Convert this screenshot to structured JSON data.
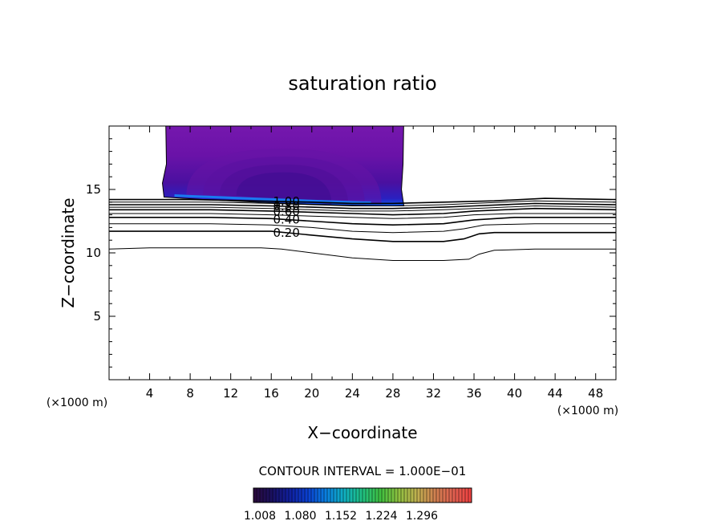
{
  "chart_data": {
    "type": "contour",
    "title": "saturation ratio",
    "xlabel": "X−coordinate",
    "ylabel": "Z−coordinate",
    "x_unit": "(×1000 m)",
    "z_unit": "(×1000 m)",
    "xlim": [
      0,
      50
    ],
    "ylim": [
      0,
      20
    ],
    "x_ticks": [
      4,
      8,
      12,
      16,
      20,
      24,
      28,
      32,
      36,
      40,
      44,
      48
    ],
    "y_ticks": [
      5,
      10,
      15
    ],
    "contour_interval_text": "CONTOUR INTERVAL = 1.000E−01",
    "contours": [
      {
        "level": 0.1,
        "label": "",
        "points": [
          [
            0,
            10.3
          ],
          [
            4,
            10.4
          ],
          [
            10,
            10.4
          ],
          [
            15,
            10.4
          ],
          [
            17,
            10.3
          ],
          [
            20,
            10
          ],
          [
            24,
            9.6
          ],
          [
            28,
            9.4
          ],
          [
            33,
            9.4
          ],
          [
            35.5,
            9.5
          ],
          [
            36.5,
            9.9
          ],
          [
            38,
            10.2
          ],
          [
            42,
            10.3
          ],
          [
            46,
            10.3
          ],
          [
            50,
            10.3
          ]
        ]
      },
      {
        "level": 0.2,
        "label": "0.20",
        "points": [
          [
            0,
            11.7
          ],
          [
            10,
            11.7
          ],
          [
            16,
            11.7
          ],
          [
            20,
            11.4
          ],
          [
            24,
            11.1
          ],
          [
            28,
            10.9
          ],
          [
            33,
            10.9
          ],
          [
            35,
            11.1
          ],
          [
            36.5,
            11.5
          ],
          [
            38,
            11.6
          ],
          [
            44,
            11.6
          ],
          [
            50,
            11.6
          ]
        ]
      },
      {
        "level": 0.3,
        "label": "",
        "points": [
          [
            0,
            12.3
          ],
          [
            10,
            12.3
          ],
          [
            16,
            12.2
          ],
          [
            20,
            12.0
          ],
          [
            24,
            11.7
          ],
          [
            28,
            11.6
          ],
          [
            33,
            11.7
          ],
          [
            35,
            11.9
          ],
          [
            37,
            12.2
          ],
          [
            42,
            12.3
          ],
          [
            50,
            12.3
          ]
        ]
      },
      {
        "level": 0.4,
        "label": "0.40",
        "points": [
          [
            0,
            12.8
          ],
          [
            10,
            12.8
          ],
          [
            16,
            12.7
          ],
          [
            20,
            12.5
          ],
          [
            24,
            12.3
          ],
          [
            28,
            12.2
          ],
          [
            33,
            12.3
          ],
          [
            36,
            12.6
          ],
          [
            40,
            12.8
          ],
          [
            50,
            12.8
          ]
        ]
      },
      {
        "level": 0.5,
        "label": "",
        "points": [
          [
            0,
            13.1
          ],
          [
            10,
            13.1
          ],
          [
            16,
            13.0
          ],
          [
            20,
            12.9
          ],
          [
            24,
            12.8
          ],
          [
            28,
            12.7
          ],
          [
            33,
            12.8
          ],
          [
            36,
            13.0
          ],
          [
            40,
            13.1
          ],
          [
            50,
            13.1
          ]
        ]
      },
      {
        "level": 0.6,
        "label": "0.60",
        "points": [
          [
            0,
            13.4
          ],
          [
            10,
            13.4
          ],
          [
            16,
            13.3
          ],
          [
            20,
            13.2
          ],
          [
            24,
            13.1
          ],
          [
            28,
            13.0
          ],
          [
            33,
            13.1
          ],
          [
            36,
            13.3
          ],
          [
            42,
            13.5
          ],
          [
            50,
            13.4
          ]
        ]
      },
      {
        "level": 0.7,
        "label": "",
        "points": [
          [
            0,
            13.6
          ],
          [
            10,
            13.6
          ],
          [
            16,
            13.5
          ],
          [
            20,
            13.4
          ],
          [
            24,
            13.3
          ],
          [
            28,
            13.3
          ],
          [
            33,
            13.4
          ],
          [
            36,
            13.5
          ],
          [
            42,
            13.7
          ],
          [
            50,
            13.6
          ]
        ]
      },
      {
        "level": 0.8,
        "label": "0.80",
        "points": [
          [
            0,
            13.8
          ],
          [
            10,
            13.8
          ],
          [
            16,
            13.7
          ],
          [
            20,
            13.6
          ],
          [
            24,
            13.5
          ],
          [
            28,
            13.5
          ],
          [
            33,
            13.6
          ],
          [
            36,
            13.7
          ],
          [
            42,
            13.9
          ],
          [
            50,
            13.8
          ]
        ]
      },
      {
        "level": 0.9,
        "label": "",
        "points": [
          [
            0,
            14.0
          ],
          [
            10,
            14.0
          ],
          [
            16,
            13.9
          ],
          [
            20,
            13.8
          ],
          [
            24,
            13.7
          ],
          [
            28,
            13.7
          ],
          [
            33,
            13.8
          ],
          [
            36,
            13.9
          ],
          [
            42,
            14.1
          ],
          [
            50,
            14.0
          ]
        ]
      },
      {
        "level": 1.0,
        "label": "1.00",
        "points": [
          [
            0,
            14.2
          ],
          [
            8,
            14.2
          ],
          [
            14,
            14.1
          ],
          [
            20,
            14.0
          ],
          [
            24,
            13.9
          ],
          [
            28,
            13.9
          ],
          [
            33,
            14.0
          ],
          [
            38,
            14.1
          ],
          [
            43,
            14.3
          ],
          [
            50,
            14.2
          ]
        ]
      }
    ],
    "filled_region": {
      "description_levels": [
        1.008,
        1.08
      ],
      "bounds_x": [
        5.5,
        29
      ],
      "top_z": 20,
      "bottom_z_left": 14.4,
      "bottom_z_right": 13.7
    },
    "colorbar": {
      "tick_labels": [
        "1.008",
        "1.080",
        "1.152",
        "1.224",
        "1.296"
      ],
      "colors": [
        "#2a0a3a",
        "#1a1060",
        "#1020a0",
        "#0a40d0",
        "#0a80e0",
        "#10b0c0",
        "#20c080",
        "#40c040",
        "#90c040",
        "#c0b050",
        "#d08050",
        "#e06050",
        "#f04040"
      ]
    }
  }
}
